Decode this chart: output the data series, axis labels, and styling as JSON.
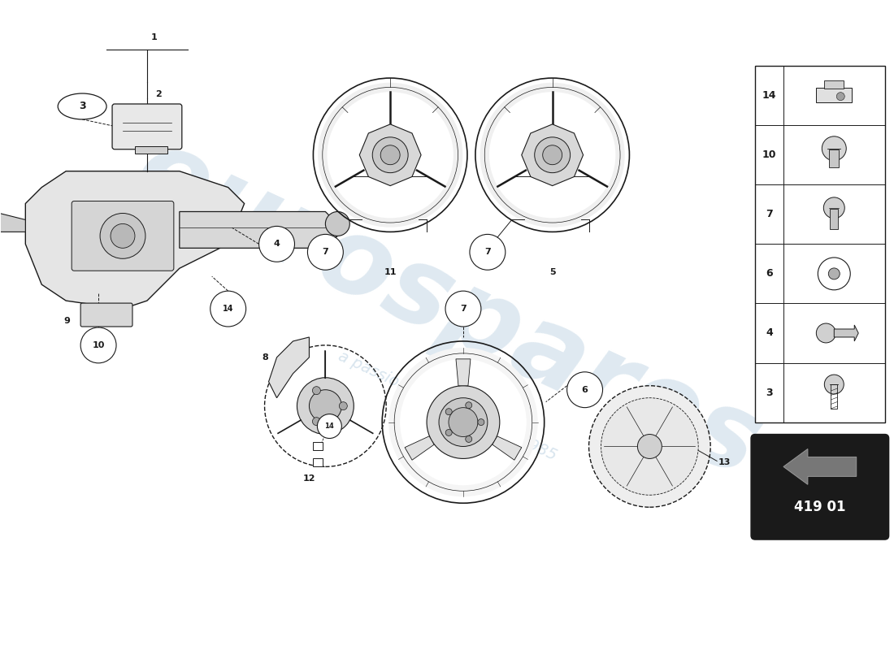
{
  "bg_color": "#ffffff",
  "line_color": "#1a1a1a",
  "watermark_text1": "eurospares",
  "watermark_text2": "a passion for parts since 1985",
  "watermark_color": "#b8cfe0",
  "part_number": "419 01",
  "legend_parts": [
    14,
    10,
    7,
    6,
    4,
    3
  ],
  "figsize": [
    11.0,
    8.0
  ],
  "dpi": 100
}
